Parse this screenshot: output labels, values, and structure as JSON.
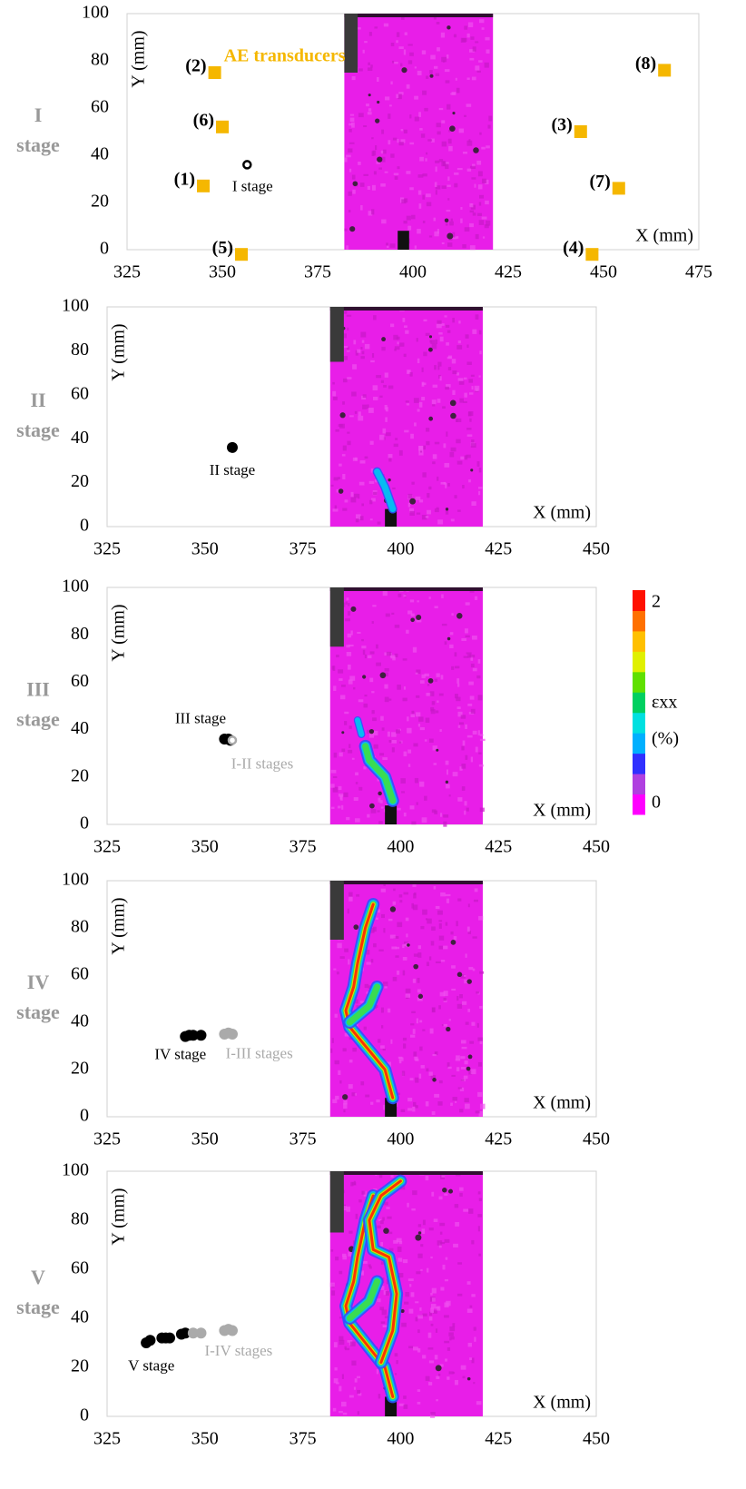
{
  "chart_data": [
    {
      "type": "scatter",
      "stage_label": [
        "I",
        "stage"
      ],
      "xlim": [
        325,
        475
      ],
      "ylim": [
        0,
        100
      ],
      "xticks": [
        325,
        350,
        375,
        400,
        425,
        450,
        475
      ],
      "yticks": [
        0,
        20,
        40,
        60,
        80,
        100
      ],
      "x_label": "X (mm)",
      "y_label": "Y (mm)",
      "series": [
        {
          "name": "AE transducers",
          "color": "#f5b700",
          "marker": "square",
          "labels": [
            "(1)",
            "(2)",
            "(3)",
            "(4)",
            "(5)",
            "(6)",
            "(7)",
            "(8)"
          ],
          "x": [
            345,
            348,
            444,
            447,
            355,
            350,
            454,
            466
          ],
          "y": [
            27,
            75,
            50,
            -2,
            -2,
            52,
            26,
            76
          ]
        },
        {
          "name": "I stage",
          "color": "#000000",
          "marker": "hollow",
          "x": [
            356.5
          ],
          "y": [
            36
          ]
        }
      ]
    },
    {
      "type": "scatter",
      "stage_label": [
        "II",
        "stage"
      ],
      "xlim": [
        325,
        450
      ],
      "ylim": [
        0,
        100
      ],
      "xticks": [
        325,
        350,
        375,
        400,
        425,
        450
      ],
      "yticks": [
        0,
        20,
        40,
        60,
        80,
        100
      ],
      "x_label": "X (mm)",
      "y_label": "Y (mm)",
      "series": [
        {
          "name": "II stage",
          "color": "#000000",
          "marker": "filled",
          "x": [
            357
          ],
          "y": [
            36
          ]
        }
      ]
    },
    {
      "type": "scatter",
      "stage_label": [
        "III",
        "stage"
      ],
      "xlim": [
        325,
        450
      ],
      "ylim": [
        0,
        100
      ],
      "xticks": [
        325,
        350,
        375,
        400,
        425,
        450
      ],
      "yticks": [
        0,
        20,
        40,
        60,
        80,
        100
      ],
      "x_label": "X (mm)",
      "y_label": "Y (mm)",
      "series": [
        {
          "name": "III stage",
          "color": "#000000",
          "marker": "filled",
          "x": [
            355,
            356,
            356.5
          ],
          "y": [
            36,
            36,
            35.5
          ]
        },
        {
          "name": "I-II stages",
          "color": "#aaaaaa",
          "marker": "hollow",
          "x": [
            357
          ],
          "y": [
            35.5
          ]
        }
      ],
      "colorbar": {
        "label": "εxx",
        "unit": "(%)",
        "lim": [
          0,
          2
        ],
        "ticks": [
          0,
          2
        ],
        "colors": [
          "#ff00ff",
          "#b040e0",
          "#3030ff",
          "#00b0ff",
          "#00e0e0",
          "#00d060",
          "#60e000",
          "#e0f000",
          "#ffc000",
          "#ff7000",
          "#ff1000"
        ]
      }
    },
    {
      "type": "scatter",
      "stage_label": [
        "IV",
        "stage"
      ],
      "xlim": [
        325,
        450
      ],
      "ylim": [
        0,
        100
      ],
      "xticks": [
        325,
        350,
        375,
        400,
        425,
        450
      ],
      "yticks": [
        0,
        20,
        40,
        60,
        80,
        100
      ],
      "x_label": "X (mm)",
      "y_label": "Y (mm)",
      "series": [
        {
          "name": "IV stage",
          "color": "#000000",
          "marker": "filled",
          "x": [
            345,
            346,
            347,
            349
          ],
          "y": [
            34,
            34.5,
            34.5,
            34.5
          ]
        },
        {
          "name": "I-III stages",
          "color": "#aaaaaa",
          "marker": "filled",
          "x": [
            355,
            356,
            357
          ],
          "y": [
            35,
            35.5,
            35
          ]
        }
      ]
    },
    {
      "type": "scatter",
      "stage_label": [
        "V",
        "stage"
      ],
      "xlim": [
        325,
        450
      ],
      "ylim": [
        0,
        100
      ],
      "xticks": [
        325,
        350,
        375,
        400,
        425,
        450
      ],
      "yticks": [
        0,
        20,
        40,
        60,
        80,
        100
      ],
      "x_label": "X (mm)",
      "y_label": "Y (mm)",
      "series": [
        {
          "name": "V stage",
          "color": "#000000",
          "marker": "filled",
          "x": [
            335,
            336,
            339,
            340,
            341,
            344,
            345
          ],
          "y": [
            30,
            31,
            32,
            32,
            32,
            33.5,
            34
          ]
        },
        {
          "name": "I-IV stages",
          "color": "#aaaaaa",
          "marker": "filled",
          "x": [
            347,
            349,
            355,
            356,
            357
          ],
          "y": [
            34,
            34,
            35,
            35.5,
            35
          ]
        }
      ]
    }
  ]
}
